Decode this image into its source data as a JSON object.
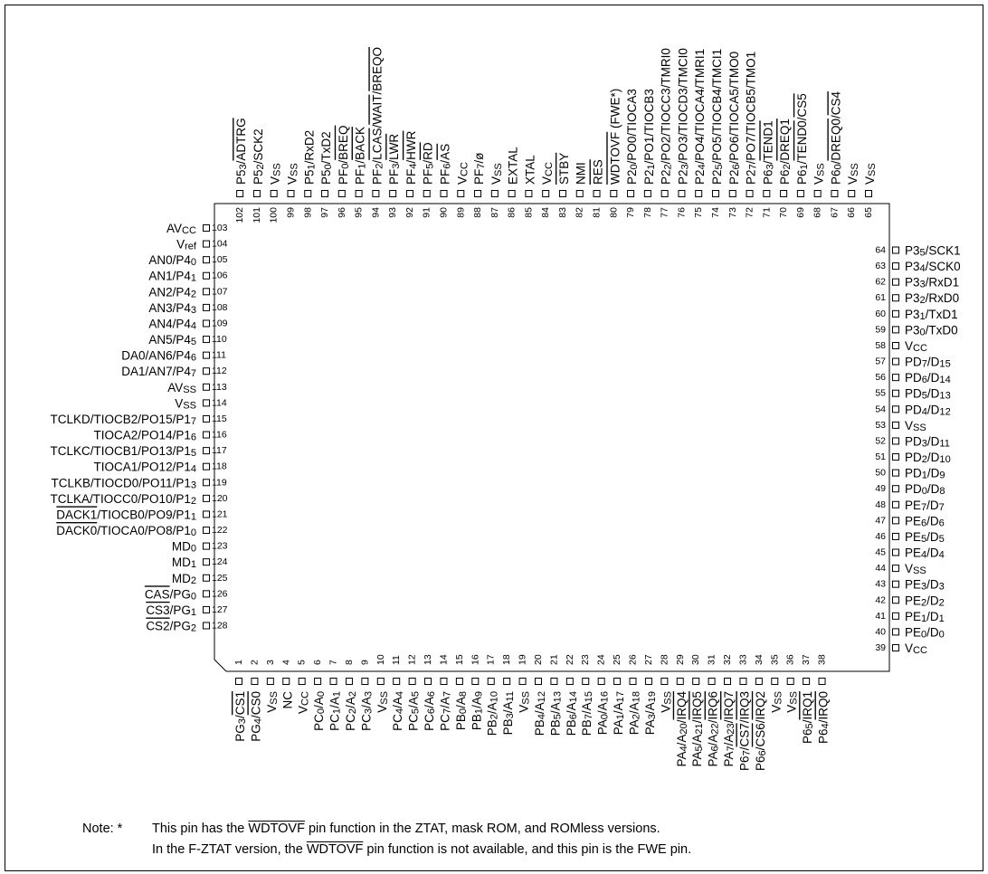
{
  "pins": [
    {
      "num": "1",
      "label": "PG_3_/~CS1~"
    },
    {
      "num": "2",
      "label": "PG_4_/~CS0~"
    },
    {
      "num": "3",
      "label": "V_SS_"
    },
    {
      "num": "4",
      "label": "NC"
    },
    {
      "num": "5",
      "label": "V_CC_"
    },
    {
      "num": "6",
      "label": "PC_0_/A_0_"
    },
    {
      "num": "7",
      "label": "PC_1_/A_1_"
    },
    {
      "num": "8",
      "label": "PC_2_/A_2_"
    },
    {
      "num": "9",
      "label": "PC_3_/A_3_"
    },
    {
      "num": "10",
      "label": "V_SS_"
    },
    {
      "num": "11",
      "label": "PC_4_/A_4_"
    },
    {
      "num": "12",
      "label": "PC_5_/A_5_"
    },
    {
      "num": "13",
      "label": "PC_6_/A_6_"
    },
    {
      "num": "14",
      "label": "PC_7_/A_7_"
    },
    {
      "num": "15",
      "label": "PB_0_/A_8_"
    },
    {
      "num": "16",
      "label": "PB_1_/A_9_"
    },
    {
      "num": "17",
      "label": "PB_2_/A_10_"
    },
    {
      "num": "18",
      "label": "PB_3_/A_11_"
    },
    {
      "num": "19",
      "label": "V_SS_"
    },
    {
      "num": "20",
      "label": "PB_4_/A_12_"
    },
    {
      "num": "21",
      "label": "PB_5_/A_13_"
    },
    {
      "num": "22",
      "label": "PB_6_/A_14_"
    },
    {
      "num": "23",
      "label": "PB_7_/A_15_"
    },
    {
      "num": "24",
      "label": "PA_0_/A_16_"
    },
    {
      "num": "25",
      "label": "PA_1_/A_17_"
    },
    {
      "num": "26",
      "label": "PA_2_/A_18_"
    },
    {
      "num": "27",
      "label": "PA_3_/A_19_"
    },
    {
      "num": "28",
      "label": "V_SS_"
    },
    {
      "num": "29",
      "label": "PA_4_/A_20_/~IRQ4~"
    },
    {
      "num": "30",
      "label": "PA_5_/A_21_/~IRQ5~"
    },
    {
      "num": "31",
      "label": "PA_6_/A_22_/~IRQ6~"
    },
    {
      "num": "32",
      "label": "PA_7_/A_23_/~IRQ7~"
    },
    {
      "num": "33",
      "label": "P6_7_/~CS7~/~IRQ3~"
    },
    {
      "num": "34",
      "label": "P6_6_/~CS6~/~IRQ2~"
    },
    {
      "num": "35",
      "label": "V_SS_"
    },
    {
      "num": "36",
      "label": "V_SS_"
    },
    {
      "num": "37",
      "label": "P6_5_/~IRQ1~"
    },
    {
      "num": "38",
      "label": "P6_4_/~IRQ0~"
    },
    {
      "num": "39",
      "label": "V_CC_"
    },
    {
      "num": "40",
      "label": "PE_0_/D_0_"
    },
    {
      "num": "41",
      "label": "PE_1_/D_1_"
    },
    {
      "num": "42",
      "label": "PE_2_/D_2_"
    },
    {
      "num": "43",
      "label": "PE_3_/D_3_"
    },
    {
      "num": "44",
      "label": "V_SS_"
    },
    {
      "num": "45",
      "label": "PE_4_/D_4_"
    },
    {
      "num": "46",
      "label": "PE_5_/D_5_"
    },
    {
      "num": "47",
      "label": "PE_6_/D_6_"
    },
    {
      "num": "48",
      "label": "PE_7_/D_7_"
    },
    {
      "num": "49",
      "label": "PD_0_/D_8_"
    },
    {
      "num": "50",
      "label": "PD_1_/D_9_"
    },
    {
      "num": "51",
      "label": "PD_2_/D_10_"
    },
    {
      "num": "52",
      "label": "PD_3_/D_11_"
    },
    {
      "num": "53",
      "label": "V_SS_"
    },
    {
      "num": "54",
      "label": "PD_4_/D_12_"
    },
    {
      "num": "55",
      "label": "PD_5_/D_13_"
    },
    {
      "num": "56",
      "label": "PD_6_/D_14_"
    },
    {
      "num": "57",
      "label": "PD_7_/D_15_"
    },
    {
      "num": "58",
      "label": "V_CC_"
    },
    {
      "num": "59",
      "label": "P3_0_/TxD0"
    },
    {
      "num": "60",
      "label": "P3_1_/TxD1"
    },
    {
      "num": "61",
      "label": "P3_2_/RxD0"
    },
    {
      "num": "62",
      "label": "P3_3_/RxD1"
    },
    {
      "num": "63",
      "label": "P3_4_/SCK0"
    },
    {
      "num": "64",
      "label": "P3_5_/SCK1"
    },
    {
      "num": "65",
      "label": "V_SS_"
    },
    {
      "num": "66",
      "label": "V_SS_"
    },
    {
      "num": "67",
      "label": "P6_0_/~DREQ0~/~CS4~"
    },
    {
      "num": "68",
      "label": "V_SS_"
    },
    {
      "num": "69",
      "label": "P6_1_/~TEND0~/~CS5~"
    },
    {
      "num": "70",
      "label": "P6_2_/~DREQ1~"
    },
    {
      "num": "71",
      "label": "P6_3_/~TEND1~"
    },
    {
      "num": "72",
      "label": "P2_7_/PO7/TIOCB5/TMO1"
    },
    {
      "num": "73",
      "label": "P2_6_/PO6/TIOCA5/TMO0"
    },
    {
      "num": "74",
      "label": "P2_5_/PO5/TIOCB4/TMCI1"
    },
    {
      "num": "75",
      "label": "P2_4_/PO4/TIOCA4/TMRI1"
    },
    {
      "num": "76",
      "label": "P2_3_/PO3/TIOCD3/TMCI0"
    },
    {
      "num": "77",
      "label": "P2_2_/PO2/TIOCC3/TMRI0"
    },
    {
      "num": "78",
      "label": "P2_1_/PO1/TIOCB3"
    },
    {
      "num": "79",
      "label": "P2_0_/PO0/TIOCA3"
    },
    {
      "num": "80",
      "label": "~WDTOVF~ (FWE*)"
    },
    {
      "num": "81",
      "label": "~RES~"
    },
    {
      "num": "82",
      "label": "NMI"
    },
    {
      "num": "83",
      "label": "~STBY~"
    },
    {
      "num": "84",
      "label": "V_CC_"
    },
    {
      "num": "85",
      "label": "XTAL"
    },
    {
      "num": "86",
      "label": "EXTAL"
    },
    {
      "num": "87",
      "label": "V_SS_"
    },
    {
      "num": "88",
      "label": "PF_7_/ø"
    },
    {
      "num": "89",
      "label": "V_CC_"
    },
    {
      "num": "90",
      "label": "PF_6_/~AS~"
    },
    {
      "num": "91",
      "label": "PF_5_/~RD~"
    },
    {
      "num": "92",
      "label": "PF_4_/~HWR~"
    },
    {
      "num": "93",
      "label": "PF_3_/~LWR~"
    },
    {
      "num": "94",
      "label": "PF_2_/~LCAS~/~WAIT~/~BREQO~"
    },
    {
      "num": "95",
      "label": "PF_1_/~BACK~"
    },
    {
      "num": "96",
      "label": "PF_0_/~BREQ~"
    },
    {
      "num": "97",
      "label": "P5_0_/TxD2"
    },
    {
      "num": "98",
      "label": "P5_1_/RxD2"
    },
    {
      "num": "99",
      "label": "V_SS_"
    },
    {
      "num": "100",
      "label": "V_SS_"
    },
    {
      "num": "101",
      "label": "P5_2_/SCK2"
    },
    {
      "num": "102",
      "label": "P5_3_/~ADTRG~"
    },
    {
      "num": "103",
      "label": "AV_CC_"
    },
    {
      "num": "104",
      "label": "V_ref_"
    },
    {
      "num": "105",
      "label": "AN0/P4_0_"
    },
    {
      "num": "106",
      "label": "AN1/P4_1_"
    },
    {
      "num": "107",
      "label": "AN2/P4_2_"
    },
    {
      "num": "108",
      "label": "AN3/P4_3_"
    },
    {
      "num": "109",
      "label": "AN4/P4_4_"
    },
    {
      "num": "110",
      "label": "AN5/P4_5_"
    },
    {
      "num": "111",
      "label": "DA0/AN6/P4_6_"
    },
    {
      "num": "112",
      "label": "DA1/AN7/P4_7_"
    },
    {
      "num": "113",
      "label": "AV_SS_"
    },
    {
      "num": "114",
      "label": "V_SS_"
    },
    {
      "num": "115",
      "label": "TCLKD/TIOCB2/PO15/P1_7_"
    },
    {
      "num": "116",
      "label": "TIOCA2/PO14/P1_6_"
    },
    {
      "num": "117",
      "label": "TCLKC/TIOCB1/PO13/P1_5_"
    },
    {
      "num": "118",
      "label": "TIOCA1/PO12/P1_4_"
    },
    {
      "num": "119",
      "label": "TCLKB/TIOCD0/PO11/P1_3_"
    },
    {
      "num": "120",
      "label": "TCLKA/TIOCC0/PO10/P1_2_"
    },
    {
      "num": "121",
      "label": "~DACK1~/TIOCB0/PO9/P1_1_"
    },
    {
      "num": "122",
      "label": "~DACK0~/TIOCA0/PO8/P1_0_"
    },
    {
      "num": "123",
      "label": "MD_0_"
    },
    {
      "num": "124",
      "label": "MD_1_"
    },
    {
      "num": "125",
      "label": "MD_2_"
    },
    {
      "num": "126",
      "label": "~CAS~/PG_0_"
    },
    {
      "num": "127",
      "label": "~CS3~/PG_1_"
    },
    {
      "num": "128",
      "label": "~CS2~/PG_2_"
    }
  ],
  "note": {
    "prefix": "Note:  *",
    "line1_a": "This pin has the ",
    "line1_b": "WDTOVF",
    "line1_c": " pin function in the ZTAT, mask ROM, and ROMless versions.",
    "line2_a": "In the F-ZTAT version, the ",
    "line2_b": "WDTOVF",
    "line2_c": " pin function is not available, and this pin is the FWE pin."
  }
}
